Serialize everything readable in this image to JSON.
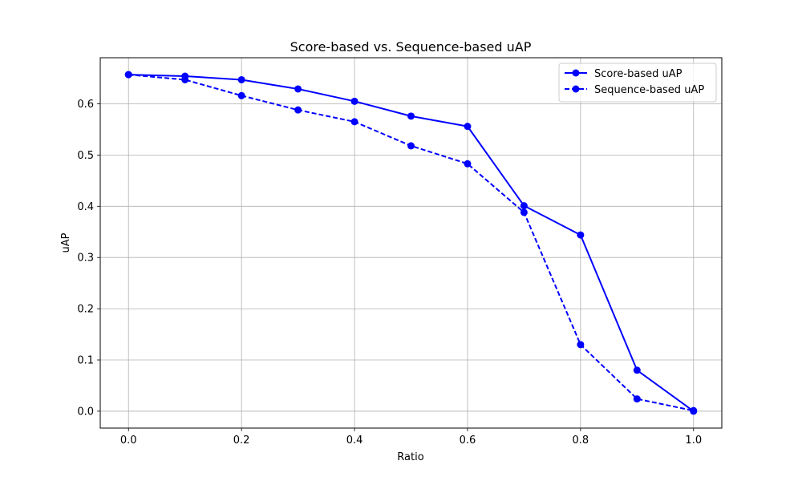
{
  "chart_data": {
    "type": "line",
    "title": "Score-based vs. Sequence-based uAP",
    "xlabel": "Ratio",
    "ylabel": "uAP",
    "xlim": [
      -0.05,
      1.05
    ],
    "ylim": [
      -0.033,
      0.69
    ],
    "x_ticks": [
      "0.0",
      "0.2",
      "0.4",
      "0.6",
      "0.8",
      "1.0"
    ],
    "y_ticks": [
      "0.0",
      "0.1",
      "0.2",
      "0.3",
      "0.4",
      "0.5",
      "0.6"
    ],
    "grid": true,
    "legend_position": "upper right",
    "x": [
      0.0,
      0.1,
      0.2,
      0.3,
      0.4,
      0.5,
      0.6,
      0.7,
      0.8,
      0.9,
      1.0
    ],
    "series": [
      {
        "name": "Score-based uAP",
        "color": "#0000ff",
        "linestyle": "solid",
        "marker": "circle",
        "values": [
          0.657,
          0.654,
          0.647,
          0.629,
          0.605,
          0.576,
          0.556,
          0.401,
          0.344,
          0.08,
          0.0
        ]
      },
      {
        "name": "Sequence-based uAP",
        "color": "#0000ff",
        "linestyle": "dashed",
        "marker": "circle",
        "values": [
          0.657,
          0.647,
          0.616,
          0.588,
          0.565,
          0.518,
          0.483,
          0.388,
          0.13,
          0.024,
          0.001
        ]
      }
    ]
  }
}
